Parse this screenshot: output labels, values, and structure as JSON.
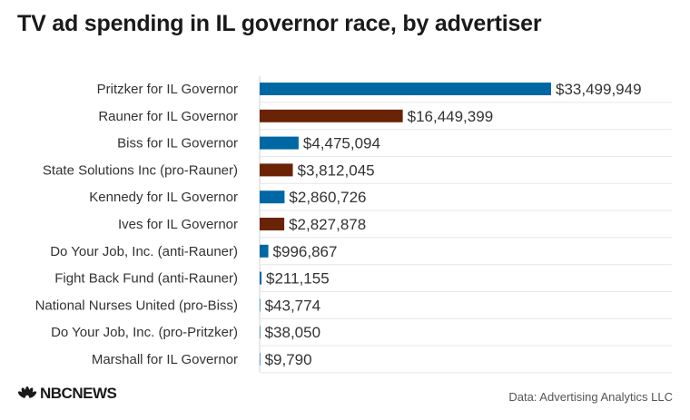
{
  "header": {
    "title": "TV ad spending in IL governor race, by advertiser"
  },
  "footer": {
    "logo_text": "NBCNEWS",
    "source": "Data: Advertising Analytics LLC"
  },
  "colors": {
    "blue": "#0067a5",
    "brown": "#6b2305"
  },
  "chart_data": {
    "type": "bar",
    "orientation": "horizontal",
    "title": "TV ad spending in IL governor race, by advertiser",
    "xlabel": "",
    "ylabel": "",
    "xlim": [
      0,
      33499949
    ],
    "grid": true,
    "legend": "none",
    "categories": [
      "Pritzker for IL Governor",
      "Rauner for IL Governor",
      "Biss for IL Governor",
      "State Solutions Inc (pro-Rauner)",
      "Kennedy for IL Governor",
      "Ives for IL Governor",
      "Do Your Job, Inc. (anti-Rauner)",
      "Fight Back Fund (anti-Rauner)",
      "National Nurses United (pro-Biss)",
      "Do Your Job, Inc. (pro-Pritzker)",
      "Marshall for IL Governor"
    ],
    "values": [
      33499949,
      16449399,
      4475094,
      3812045,
      2860726,
      2827878,
      996867,
      211155,
      43774,
      38050,
      9790
    ],
    "value_labels": [
      "$33,499,949",
      "$16,449,399",
      "$4,475,094",
      "$3,812,045",
      "$2,860,726",
      "$2,827,878",
      "$996,867",
      "$211,155",
      "$43,774",
      "$38,050",
      "$9,790"
    ],
    "bar_colors": [
      "#0067a5",
      "#6b2305",
      "#0067a5",
      "#6b2305",
      "#0067a5",
      "#6b2305",
      "#0067a5",
      "#0067a5",
      "#0067a5",
      "#0067a5",
      "#0067a5"
    ]
  }
}
